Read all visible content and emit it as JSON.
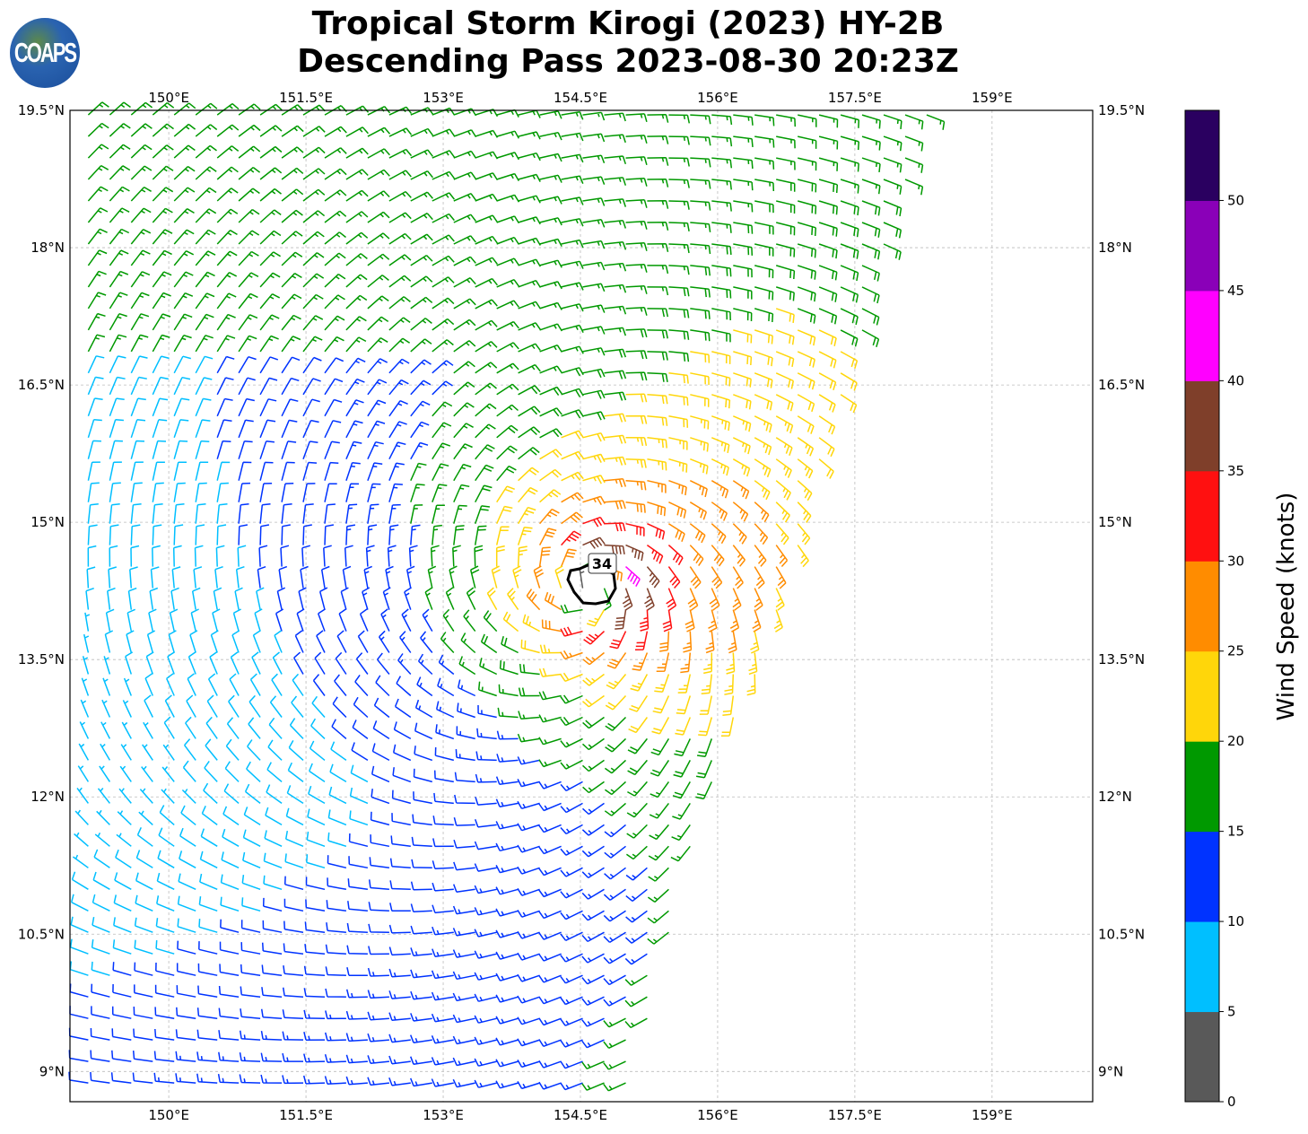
{
  "logo": {
    "text": "COAPS"
  },
  "chart_data": {
    "type": "wind-barbs",
    "title": [
      "Tropical Storm Kirogi (2023) HY-2B",
      "Descending Pass 2023-08-30 20:23Z"
    ],
    "x_ticks": [
      "150°E",
      "151.5°E",
      "153°E",
      "154.5°E",
      "156°E",
      "157.5°E",
      "159°E"
    ],
    "x_tick_values": [
      150,
      151.5,
      153,
      154.5,
      156,
      157.5,
      159
    ],
    "y_ticks": [
      "19.5°N",
      "18°N",
      "16.5°N",
      "15°N",
      "13.5°N",
      "12°N",
      "10.5°N",
      "9°N"
    ],
    "y_tick_values": [
      19.5,
      18,
      16.5,
      15,
      13.5,
      12,
      10.5,
      9
    ],
    "xlim": [
      148.92,
      160.1
    ],
    "ylim": [
      8.67,
      19.5
    ],
    "grid": true,
    "storm_center": {
      "lon": 154.6,
      "lat": 14.3
    },
    "max_wind_kt": 34,
    "contour_label": "34",
    "colorbar": {
      "label": "Wind Speed (knots)",
      "bounds": [
        0,
        5,
        10,
        15,
        20,
        25,
        30,
        35,
        40,
        45,
        50,
        55
      ],
      "tick_labels": [
        "0",
        "5",
        "10",
        "15",
        "20",
        "25",
        "30",
        "35",
        "40",
        "45",
        "50"
      ],
      "colors": [
        "#595959",
        "#00bfff",
        "#0033ff",
        "#009900",
        "#ffd60a",
        "#ff8c00",
        "#ff1010",
        "#7f3f2a",
        "#ff00ff",
        "#8a00b8",
        "#2a0060"
      ]
    }
  }
}
